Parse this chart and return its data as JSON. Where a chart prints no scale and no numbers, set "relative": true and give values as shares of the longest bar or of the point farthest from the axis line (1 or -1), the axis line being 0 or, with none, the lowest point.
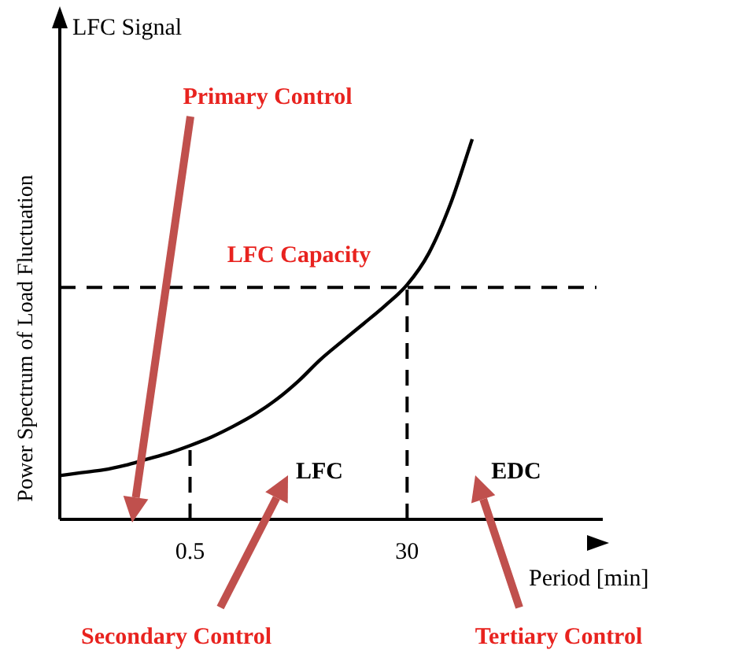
{
  "chart_data": {
    "type": "line",
    "relative": true,
    "ylabel": "Power Spectrum of Load Fluctuation",
    "xlabel": "Period [min]",
    "categories": [
      null,
      null,
      null,
      null,
      null,
      null,
      "0.5",
      null,
      null,
      null,
      null,
      null,
      null,
      null,
      null,
      null,
      "30",
      null,
      null,
      null,
      null,
      null,
      null,
      null,
      null
    ],
    "series": [
      {
        "color": "#000000",
        "values": [
          0.115,
          0.123,
          0.13,
          0.142,
          0.158,
          0.174,
          0.194,
          0.217,
          0.245,
          0.277,
          0.316,
          0.364,
          0.42,
          0.468,
          0.515,
          0.563,
          0.617,
          0.7,
          0.83,
          1.0,
          null,
          null,
          null,
          null,
          null
        ]
      }
    ],
    "ref_lines": [
      {
        "axis": "y",
        "value": 0.61,
        "label": "LFC Capacity",
        "line_style": "dashed"
      },
      {
        "axis": "x",
        "value": "0.5",
        "line_style": "dashed"
      },
      {
        "axis": "x",
        "value": "30",
        "line_style": "dashed"
      }
    ],
    "annotations": [
      "LFC Signal",
      "Primary Control",
      "LFC",
      "EDC",
      "Secondary Control",
      "Tertiary Control"
    ],
    "grid": false,
    "legend": false,
    "marker": "none",
    "line_style": "solid"
  }
}
